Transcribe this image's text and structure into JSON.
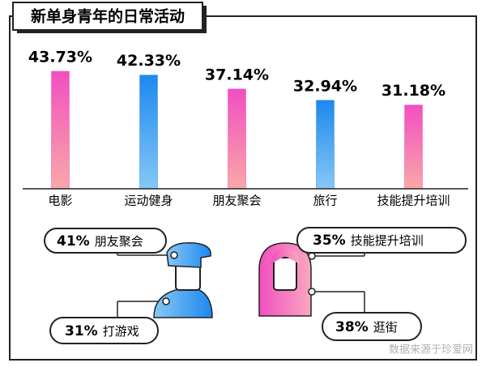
{
  "chart_data": {
    "type": "bar",
    "title": "新单身青年的日常活动",
    "categories": [
      "电影",
      "运动健身",
      "朋友聚会",
      "旅行",
      "技能提升培训"
    ],
    "values": [
      43.73,
      42.33,
      37.14,
      32.94,
      31.18
    ],
    "value_labels": [
      "43.73%",
      "42.33%",
      "37.14%",
      "32.94%",
      "31.18%"
    ],
    "colors": [
      "#f14fc0",
      "#2a8ff0",
      "#f14fc0",
      "#2a8ff0",
      "#f14fc0"
    ]
  },
  "callouts": {
    "male": [
      {
        "percent": "41%",
        "activity": "朋友聚会"
      },
      {
        "percent": "31%",
        "activity": "打游戏"
      }
    ],
    "female": [
      {
        "percent": "35%",
        "activity": "技能提升培训"
      },
      {
        "percent": "38%",
        "activity": "逛街"
      }
    ]
  },
  "source": "数据来源于珍爱网"
}
